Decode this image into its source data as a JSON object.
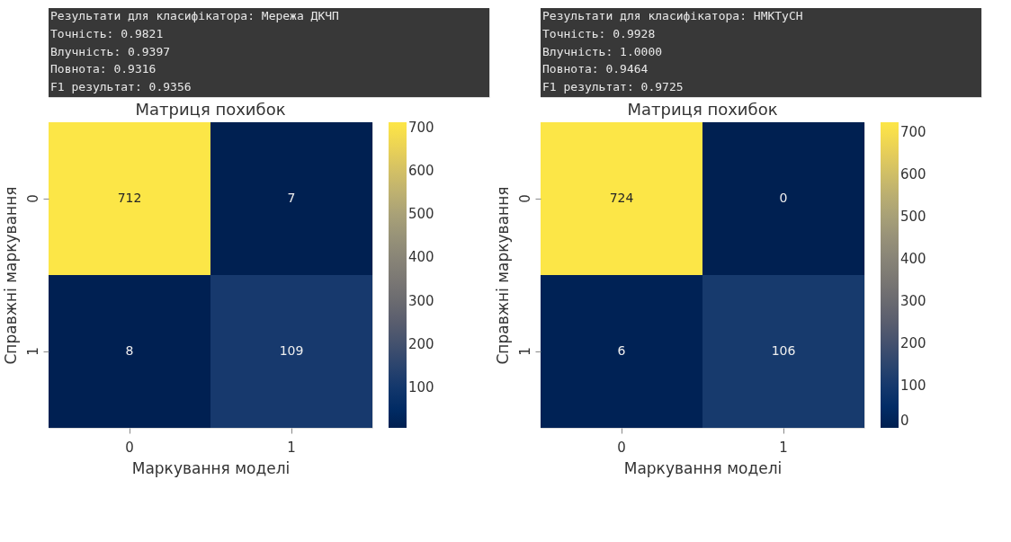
{
  "chart_data": [
    {
      "type": "heatmap",
      "title": "Матриця похибок",
      "xlabel": "Маркування моделі",
      "ylabel": "Справжні маркування",
      "annotations": [
        "Результати для класифікатора: Мережа ДКЧП",
        "Точність: 0.9821",
        "Влучність: 0.9397",
        "Повнота: 0.9316",
        "F1 результат: 0.9356"
      ],
      "categories": [
        "0",
        "1"
      ],
      "y_categories": [
        "0",
        "1"
      ],
      "cells": [
        [
          712,
          7
        ],
        [
          8,
          109
        ]
      ],
      "clim": [
        7,
        712
      ],
      "cticks": [
        100,
        200,
        300,
        400,
        500,
        600,
        700
      ],
      "data_labels": true
    },
    {
      "type": "heatmap",
      "title": "Матриця похибок",
      "xlabel": "Маркування моделі",
      "ylabel": "Справжні маркування",
      "annotations": [
        "Результати для класифікатора: НМКТуСН",
        "Точність: 0.9928",
        "Влучність: 1.0000",
        "Повнота: 0.9464",
        "F1 результат: 0.9725"
      ],
      "categories": [
        "0",
        "1"
      ],
      "y_categories": [
        "0",
        "1"
      ],
      "cells": [
        [
          724,
          0
        ],
        [
          6,
          106
        ]
      ],
      "clim": [
        0,
        724
      ],
      "cticks": [
        0,
        100,
        200,
        300,
        400,
        500,
        600,
        700
      ],
      "data_labels": true
    }
  ]
}
